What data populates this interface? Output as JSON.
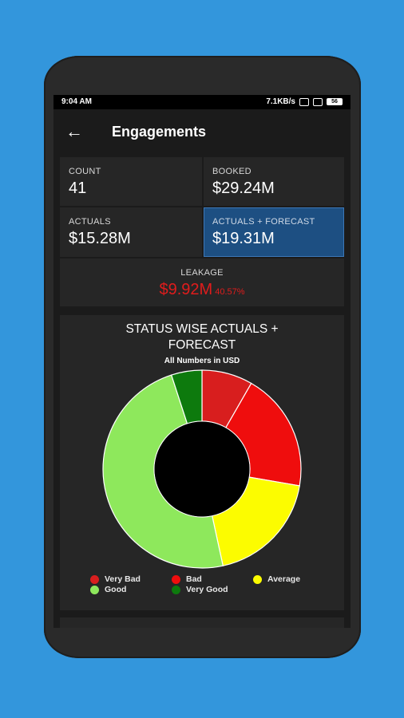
{
  "status": {
    "time": "9:04 AM",
    "speed": "7.1KB/s",
    "battery": "56"
  },
  "header": {
    "title": "Engagements",
    "back_icon": "arrow-left-icon"
  },
  "stats": {
    "count_label": "COUNT",
    "count_value": "41",
    "booked_label": "BOOKED",
    "booked_value": "$29.24M",
    "actuals_label": "ACTUALS",
    "actuals_value": "$15.28M",
    "forecast_label": "ACTUALS + FORECAST",
    "forecast_value": "$19.31M",
    "leakage_label": "LEAKAGE",
    "leakage_value": "$9.92M",
    "leakage_percent": "40.57%"
  },
  "chart_data": {
    "type": "pie",
    "title": "STATUS WISE ACTUALS + FORECAST",
    "subtitle": "All Numbers in USD",
    "categories": [
      "Very Bad",
      "Bad",
      "Average",
      "Good",
      "Very Good"
    ],
    "values": [
      8.3,
      19.4,
      18.9,
      48.4,
      5.0
    ],
    "colors": [
      "#d81e1e",
      "#ef0d0d",
      "#fcfc00",
      "#8ee85c",
      "#0d7a0d"
    ],
    "legend_position": "bottom"
  }
}
